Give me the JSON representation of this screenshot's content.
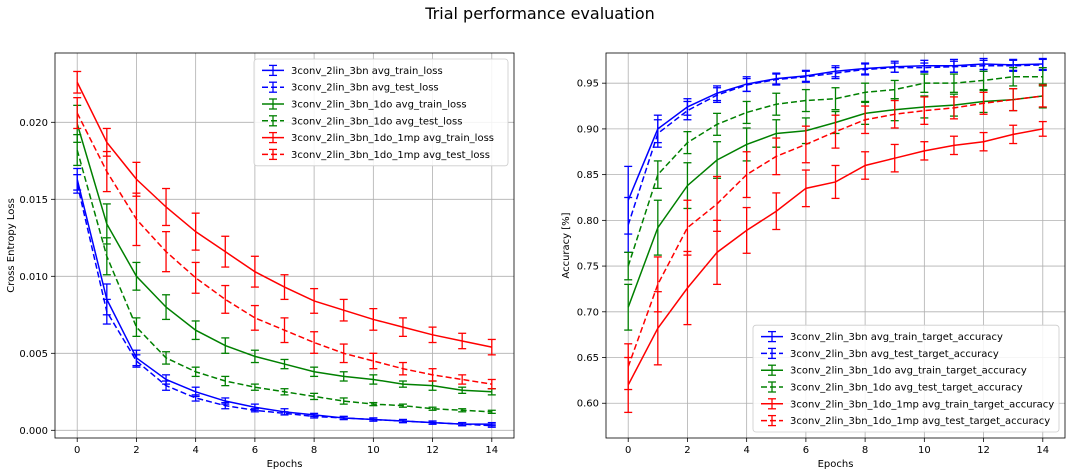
{
  "figure": {
    "suptitle": "Trial performance evaluation"
  },
  "chart_data": [
    {
      "type": "line",
      "xlabel": "Epochs",
      "ylabel": "Cross Entropy Loss",
      "xlim": [
        -0.75,
        14.75
      ],
      "ylim": [
        -0.0005,
        0.0245
      ],
      "xticks": [
        0,
        2,
        4,
        6,
        8,
        10,
        12,
        14
      ],
      "xtick_labels": [
        "0",
        "2",
        "4",
        "6",
        "8",
        "10",
        "12",
        "14"
      ],
      "yticks": [
        0,
        0.005,
        0.01,
        0.015,
        0.02
      ],
      "ytick_labels": [
        "0.000",
        "0.005",
        "0.010",
        "0.015",
        "0.020"
      ],
      "grid": true,
      "legend_position": "top-right",
      "x": [
        0,
        1,
        2,
        3,
        4,
        5,
        6,
        7,
        8,
        9,
        10,
        11,
        12,
        13,
        14
      ],
      "series": [
        {
          "name": "3conv_2lin_3bn  avg_train_loss",
          "color": "#0000ff",
          "dash": "solid",
          "values": [
            0.0163,
            0.0085,
            0.0047,
            0.0033,
            0.0025,
            0.0019,
            0.0015,
            0.0012,
            0.001,
            0.0008,
            0.0007,
            0.0006,
            0.0005,
            0.0004,
            0.0004
          ],
          "errors": [
            0.0007,
            0.001,
            0.0005,
            0.0003,
            0.0003,
            0.0002,
            0.0002,
            0.0002,
            0.0001,
            0.0001,
            0.0001,
            0.0001,
            0.0001,
            0.0001,
            0.0001
          ]
        },
        {
          "name": "3conv_2lin_3bn  avg_test_loss",
          "color": "#0000ff",
          "dash": "dashed",
          "values": [
            0.016,
            0.0077,
            0.0045,
            0.0029,
            0.0021,
            0.0016,
            0.0013,
            0.0011,
            0.0009,
            0.0008,
            0.0007,
            0.0006,
            0.0005,
            0.0004,
            0.0003
          ],
          "errors": [
            0.0006,
            0.0008,
            0.0004,
            0.0003,
            0.0002,
            0.0002,
            0.0001,
            0.0001,
            0.0001,
            0.0001,
            0.0001,
            0.0001,
            0.0001,
            0.0001,
            0.0001
          ]
        },
        {
          "name": "3conv_2lin_3bn_1do  avg_train_loss",
          "color": "#008000",
          "dash": "solid",
          "values": [
            0.0199,
            0.0134,
            0.01,
            0.008,
            0.0065,
            0.0055,
            0.0048,
            0.0043,
            0.0038,
            0.0035,
            0.0033,
            0.003,
            0.0029,
            0.0026,
            0.0025
          ],
          "errors": [
            0.0012,
            0.0013,
            0.0009,
            0.0008,
            0.0006,
            0.0005,
            0.0004,
            0.0003,
            0.0003,
            0.0003,
            0.0003,
            0.0002,
            0.0003,
            0.0002,
            0.0002
          ]
        },
        {
          "name": "3conv_2lin_3bn_1do  avg_test_loss",
          "color": "#008000",
          "dash": "dashed",
          "values": [
            0.0182,
            0.0113,
            0.0067,
            0.0047,
            0.0038,
            0.0032,
            0.0028,
            0.0025,
            0.0022,
            0.0019,
            0.0017,
            0.0016,
            0.0014,
            0.0013,
            0.0012
          ],
          "errors": [
            0.001,
            0.0012,
            0.0006,
            0.0004,
            0.0003,
            0.0003,
            0.0002,
            0.0002,
            0.0002,
            0.0002,
            0.0001,
            0.0001,
            0.0001,
            0.0001,
            0.0001
          ]
        },
        {
          "name": "3conv_2lin_3bn_1do_1mp  avg_train_loss",
          "color": "#ff0000",
          "dash": "solid",
          "values": [
            0.0226,
            0.0187,
            0.0163,
            0.0145,
            0.0129,
            0.0116,
            0.0103,
            0.0093,
            0.0084,
            0.0078,
            0.0072,
            0.0067,
            0.0062,
            0.0058,
            0.0054
          ],
          "errors": [
            0.0007,
            0.0009,
            0.0011,
            0.0012,
            0.0012,
            0.001,
            0.001,
            0.0008,
            0.0008,
            0.0007,
            0.0007,
            0.0006,
            0.0005,
            0.0005,
            0.0005
          ]
        },
        {
          "name": "3conv_2lin_3bn_1do_1mp  avg_test_loss",
          "color": "#ff0000",
          "dash": "dashed",
          "values": [
            0.0206,
            0.0168,
            0.0137,
            0.0116,
            0.0099,
            0.0085,
            0.0073,
            0.0065,
            0.0057,
            0.005,
            0.0045,
            0.004,
            0.0036,
            0.0033,
            0.003
          ],
          "errors": [
            0.001,
            0.0013,
            0.0017,
            0.0013,
            0.001,
            0.0009,
            0.0008,
            0.0008,
            0.0007,
            0.0006,
            0.0005,
            0.0004,
            0.0004,
            0.0003,
            0.0003
          ]
        }
      ]
    },
    {
      "type": "line",
      "xlabel": "Epochs",
      "ylabel": "Accuracy [%]",
      "xlim": [
        -0.75,
        14.75
      ],
      "ylim": [
        0.562,
        0.983
      ],
      "xticks": [
        0,
        2,
        4,
        6,
        8,
        10,
        12,
        14
      ],
      "xtick_labels": [
        "0",
        "2",
        "4",
        "6",
        "8",
        "10",
        "12",
        "14"
      ],
      "yticks": [
        0.6,
        0.65,
        0.7,
        0.75,
        0.8,
        0.85,
        0.9,
        0.95
      ],
      "ytick_labels": [
        "0.60",
        "0.65",
        "0.70",
        "0.75",
        "0.80",
        "0.85",
        "0.90",
        "0.95"
      ],
      "grid": true,
      "legend_position": "bottom-right",
      "x": [
        0,
        1,
        2,
        3,
        4,
        5,
        6,
        7,
        8,
        9,
        10,
        11,
        12,
        13,
        14
      ],
      "series": [
        {
          "name": "3conv_2lin_3bn  avg_train_target_accuracy",
          "color": "#0000ff",
          "dash": "solid",
          "values": [
            0.822,
            0.9,
            0.924,
            0.939,
            0.949,
            0.955,
            0.958,
            0.963,
            0.966,
            0.968,
            0.969,
            0.969,
            0.971,
            0.97,
            0.971
          ],
          "errors": [
            0.037,
            0.015,
            0.009,
            0.008,
            0.008,
            0.006,
            0.006,
            0.006,
            0.006,
            0.006,
            0.006,
            0.007,
            0.006,
            0.006,
            0.006
          ]
        },
        {
          "name": "3conv_2lin_3bn  avg_test_target_accuracy",
          "color": "#0000ff",
          "dash": "dashed",
          "values": [
            0.795,
            0.895,
            0.92,
            0.937,
            0.948,
            0.954,
            0.957,
            0.961,
            0.965,
            0.967,
            0.967,
            0.968,
            0.969,
            0.969,
            0.97
          ],
          "errors": [
            0.03,
            0.015,
            0.01,
            0.008,
            0.007,
            0.006,
            0.006,
            0.006,
            0.006,
            0.005,
            0.005,
            0.006,
            0.006,
            0.006,
            0.006
          ]
        },
        {
          "name": "3conv_2lin_3bn_1do  avg_train_target_accuracy",
          "color": "#008000",
          "dash": "solid",
          "values": [
            0.705,
            0.792,
            0.838,
            0.866,
            0.883,
            0.895,
            0.898,
            0.907,
            0.917,
            0.921,
            0.924,
            0.926,
            0.93,
            0.932,
            0.936
          ],
          "errors": [
            0.025,
            0.03,
            0.025,
            0.02,
            0.018,
            0.015,
            0.014,
            0.012,
            0.012,
            0.012,
            0.012,
            0.012,
            0.012,
            0.012,
            0.013
          ]
        },
        {
          "name": "3conv_2lin_3bn_1do  avg_test_target_accuracy",
          "color": "#008000",
          "dash": "dashed",
          "values": [
            0.75,
            0.85,
            0.885,
            0.905,
            0.918,
            0.927,
            0.931,
            0.933,
            0.94,
            0.943,
            0.95,
            0.95,
            0.953,
            0.957,
            0.957
          ],
          "errors": [
            0.015,
            0.015,
            0.012,
            0.012,
            0.012,
            0.012,
            0.012,
            0.012,
            0.01,
            0.01,
            0.01,
            0.01,
            0.01,
            0.01,
            0.01
          ]
        },
        {
          "name": "3conv_2lin_3bn_1do_1mp  avg_train_target_accuracy",
          "color": "#ff0000",
          "dash": "solid",
          "values": [
            0.62,
            0.682,
            0.726,
            0.765,
            0.789,
            0.81,
            0.835,
            0.842,
            0.86,
            0.868,
            0.876,
            0.882,
            0.886,
            0.894,
            0.9
          ],
          "errors": [
            0.03,
            0.04,
            0.04,
            0.035,
            0.025,
            0.02,
            0.02,
            0.018,
            0.015,
            0.015,
            0.01,
            0.01,
            0.01,
            0.01,
            0.008
          ]
        },
        {
          "name": "3conv_2lin_3bn_1do_1mp  avg_test_target_accuracy",
          "color": "#ff0000",
          "dash": "dashed",
          "values": [
            0.64,
            0.73,
            0.792,
            0.818,
            0.85,
            0.87,
            0.883,
            0.897,
            0.91,
            0.916,
            0.92,
            0.923,
            0.928,
            0.932,
            0.936
          ],
          "errors": [
            0.025,
            0.03,
            0.03,
            0.03,
            0.025,
            0.02,
            0.02,
            0.018,
            0.015,
            0.015,
            0.015,
            0.012,
            0.012,
            0.012,
            0.012
          ]
        }
      ]
    }
  ]
}
